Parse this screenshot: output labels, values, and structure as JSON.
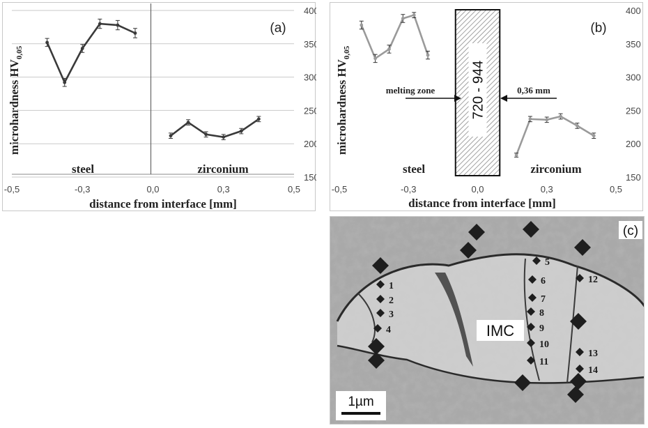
{
  "chart_data": [
    {
      "type": "line",
      "panel_label": "(a)",
      "ylabel_main": "microhardness HV",
      "ylabel_sub": "0,05",
      "xlabel": "distance from interface [mm]",
      "xlim": [
        -0.5,
        0.5
      ],
      "ylim": [
        150,
        400
      ],
      "x_ticks": [
        "-0,5",
        "-0,3",
        "0,0",
        "0,3",
        "0,5"
      ],
      "x_tick_values": [
        -0.5,
        -0.25,
        0.0,
        0.25,
        0.5
      ],
      "y_ticks": [
        "400",
        "350",
        "300",
        "250",
        "200",
        "150"
      ],
      "y_tick_values": [
        400,
        350,
        300,
        250,
        200,
        150
      ],
      "grid": true,
      "line_color": "#3a3a3a",
      "region_labels": [
        "steel",
        "zirconium"
      ],
      "series": [
        {
          "x": [
            -0.375,
            -0.313,
            -0.25,
            -0.188,
            -0.125,
            -0.063
          ],
          "y": [
            352,
            292,
            343,
            380,
            378,
            366
          ],
          "err": [
            6,
            6,
            6,
            7,
            7,
            7
          ]
        },
        {
          "x": [
            0.063,
            0.125,
            0.188,
            0.25,
            0.313,
            0.375
          ],
          "y": [
            212,
            232,
            214,
            210,
            219,
            237
          ],
          "err": [
            4,
            4,
            4,
            4,
            4,
            4
          ]
        }
      ]
    },
    {
      "type": "line",
      "panel_label": "(b)",
      "ylabel_main": "microhardness HV",
      "ylabel_sub": "0,05",
      "xlabel": "distance from interface [mm]",
      "xlim": [
        -0.5,
        0.5
      ],
      "ylim": [
        150,
        400
      ],
      "x_ticks": [
        "-0,5",
        "-0,3",
        "0,0",
        "0,3",
        "0,5"
      ],
      "x_tick_values": [
        -0.5,
        -0.25,
        0.0,
        0.25,
        0.5
      ],
      "y_ticks": [
        "400",
        "350",
        "300",
        "250",
        "200",
        "150"
      ],
      "y_tick_values": [
        400,
        350,
        300,
        250,
        200,
        150
      ],
      "grid": false,
      "line_color": "#9a9a9a",
      "region_labels": [
        "steel",
        "zirconium"
      ],
      "melting_zone_label": "melting zone",
      "melting_zone_range": [
        -0.08,
        0.08
      ],
      "melting_zone_value": "720 - 944",
      "width_label": "0,36 mm",
      "series": [
        {
          "x": [
            -0.42,
            -0.37,
            -0.32,
            -0.27,
            -0.23,
            -0.18
          ],
          "y": [
            378,
            328,
            342,
            388,
            393,
            333
          ],
          "err": [
            6,
            6,
            6,
            6,
            4,
            6
          ]
        },
        {
          "x": [
            0.14,
            0.19,
            0.25,
            0.3,
            0.36,
            0.42
          ],
          "y": [
            183,
            237,
            236,
            241,
            227,
            212
          ],
          "err": [
            3,
            4,
            4,
            4,
            4,
            4
          ]
        }
      ]
    }
  ],
  "micrograph": {
    "panel_label": "(c)",
    "imc_label": "IMC",
    "scale_label": "1µm",
    "indent_labels": [
      "1",
      "2",
      "3",
      "4",
      "5",
      "6",
      "7",
      "8",
      "9",
      "10",
      "11",
      "12",
      "13",
      "14"
    ]
  }
}
